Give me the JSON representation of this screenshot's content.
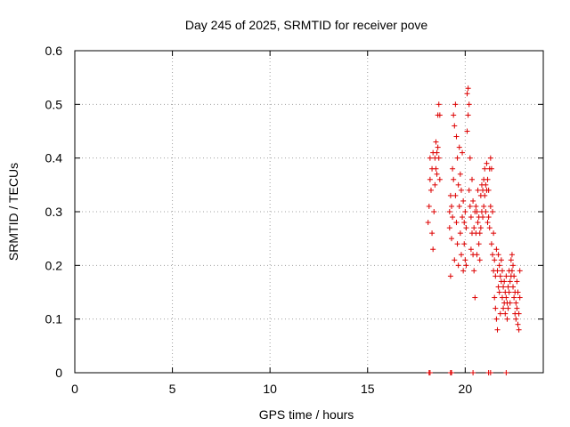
{
  "chart_data": {
    "type": "scatter",
    "title": "Day 245 of 2025, SRMTID for receiver pove",
    "xlabel": "GPS time / hours",
    "ylabel": "SRMTID / TECUs",
    "xlim": [
      0,
      24
    ],
    "ylim": [
      0,
      0.6
    ],
    "xticks": [
      "0",
      "5",
      "10",
      "15",
      "20"
    ],
    "yticks": [
      "0",
      "0.1",
      "0.2",
      "0.3",
      "0.4",
      "0.5",
      "0.6"
    ],
    "grid": true,
    "marker": "+",
    "color": "#dd0000",
    "series": [
      {
        "points": [
          [
            18.15,
            0.0
          ],
          [
            18.2,
            0.0
          ],
          [
            19.25,
            0.0
          ],
          [
            19.3,
            0.0
          ],
          [
            20.4,
            0.0
          ],
          [
            21.2,
            0.0
          ],
          [
            21.3,
            0.0
          ],
          [
            22.1,
            0.0
          ],
          [
            18.1,
            0.28
          ],
          [
            18.15,
            0.31
          ],
          [
            18.2,
            0.36
          ],
          [
            18.2,
            0.4
          ],
          [
            18.25,
            0.34
          ],
          [
            18.3,
            0.26
          ],
          [
            18.3,
            0.38
          ],
          [
            18.35,
            0.41
          ],
          [
            18.35,
            0.23
          ],
          [
            18.4,
            0.3
          ],
          [
            18.45,
            0.4
          ],
          [
            18.45,
            0.35
          ],
          [
            18.5,
            0.43
          ],
          [
            18.5,
            0.38
          ],
          [
            18.55,
            0.41
          ],
          [
            18.55,
            0.37
          ],
          [
            18.6,
            0.42
          ],
          [
            18.6,
            0.48
          ],
          [
            18.65,
            0.5
          ],
          [
            18.65,
            0.4
          ],
          [
            18.7,
            0.48
          ],
          [
            18.7,
            0.36
          ],
          [
            19.2,
            0.3
          ],
          [
            19.2,
            0.27
          ],
          [
            19.25,
            0.33
          ],
          [
            19.25,
            0.18
          ],
          [
            19.3,
            0.31
          ],
          [
            19.3,
            0.25
          ],
          [
            19.35,
            0.38
          ],
          [
            19.35,
            0.29
          ],
          [
            19.4,
            0.48
          ],
          [
            19.4,
            0.36
          ],
          [
            19.45,
            0.46
          ],
          [
            19.45,
            0.21
          ],
          [
            19.5,
            0.5
          ],
          [
            19.5,
            0.33
          ],
          [
            19.55,
            0.44
          ],
          [
            19.55,
            0.28
          ],
          [
            19.6,
            0.4
          ],
          [
            19.6,
            0.24
          ],
          [
            19.65,
            0.35
          ],
          [
            19.65,
            0.2
          ],
          [
            19.7,
            0.42
          ],
          [
            19.7,
            0.31
          ],
          [
            19.75,
            0.37
          ],
          [
            19.75,
            0.26
          ],
          [
            19.8,
            0.34
          ],
          [
            19.8,
            0.22
          ],
          [
            19.85,
            0.41
          ],
          [
            19.85,
            0.29
          ],
          [
            19.9,
            0.32
          ],
          [
            19.9,
            0.19
          ],
          [
            19.95,
            0.28
          ],
          [
            19.95,
            0.24
          ],
          [
            20.0,
            0.3
          ],
          [
            20.0,
            0.21
          ],
          [
            20.05,
            0.27
          ],
          [
            20.05,
            0.2
          ],
          [
            20.1,
            0.45
          ],
          [
            20.1,
            0.52
          ],
          [
            20.15,
            0.53
          ],
          [
            20.15,
            0.48
          ],
          [
            20.2,
            0.5
          ],
          [
            20.2,
            0.34
          ],
          [
            20.25,
            0.4
          ],
          [
            20.25,
            0.31
          ],
          [
            20.3,
            0.29
          ],
          [
            20.3,
            0.23
          ],
          [
            20.35,
            0.36
          ],
          [
            20.35,
            0.26
          ],
          [
            20.4,
            0.32
          ],
          [
            20.4,
            0.22
          ],
          [
            20.45,
            0.27
          ],
          [
            20.45,
            0.19
          ],
          [
            20.5,
            0.3
          ],
          [
            20.5,
            0.14
          ],
          [
            20.55,
            0.31
          ],
          [
            20.55,
            0.26
          ],
          [
            20.6,
            0.3
          ],
          [
            20.6,
            0.22
          ],
          [
            20.65,
            0.34
          ],
          [
            20.65,
            0.28
          ],
          [
            20.7,
            0.29
          ],
          [
            20.7,
            0.24
          ],
          [
            20.75,
            0.26
          ],
          [
            20.75,
            0.21
          ],
          [
            20.8,
            0.33
          ],
          [
            20.8,
            0.27
          ],
          [
            20.85,
            0.35
          ],
          [
            20.85,
            0.3
          ],
          [
            20.9,
            0.34
          ],
          [
            20.9,
            0.29
          ],
          [
            20.95,
            0.36
          ],
          [
            20.95,
            0.31
          ],
          [
            21.0,
            0.38
          ],
          [
            21.0,
            0.33
          ],
          [
            21.05,
            0.35
          ],
          [
            21.05,
            0.3
          ],
          [
            21.1,
            0.39
          ],
          [
            21.1,
            0.34
          ],
          [
            21.15,
            0.36
          ],
          [
            21.15,
            0.28
          ],
          [
            21.2,
            0.34
          ],
          [
            21.2,
            0.29
          ],
          [
            21.25,
            0.38
          ],
          [
            21.25,
            0.27
          ],
          [
            21.3,
            0.4
          ],
          [
            21.3,
            0.31
          ],
          [
            21.35,
            0.38
          ],
          [
            21.35,
            0.24
          ],
          [
            21.4,
            0.3
          ],
          [
            21.4,
            0.22
          ],
          [
            21.45,
            0.26
          ],
          [
            21.45,
            0.19
          ],
          [
            21.5,
            0.21
          ],
          [
            21.5,
            0.14
          ],
          [
            21.55,
            0.18
          ],
          [
            21.55,
            0.12
          ],
          [
            21.6,
            0.23
          ],
          [
            21.6,
            0.1
          ],
          [
            21.65,
            0.19
          ],
          [
            21.65,
            0.08
          ],
          [
            21.7,
            0.22
          ],
          [
            21.7,
            0.16
          ],
          [
            21.75,
            0.2
          ],
          [
            21.75,
            0.15
          ],
          [
            21.8,
            0.18
          ],
          [
            21.8,
            0.11
          ],
          [
            21.85,
            0.21
          ],
          [
            21.85,
            0.17
          ],
          [
            21.9,
            0.19
          ],
          [
            21.9,
            0.14
          ],
          [
            21.95,
            0.16
          ],
          [
            21.95,
            0.12
          ],
          [
            22.0,
            0.17
          ],
          [
            22.0,
            0.13
          ],
          [
            22.05,
            0.15
          ],
          [
            22.05,
            0.11
          ],
          [
            22.1,
            0.18
          ],
          [
            22.1,
            0.14
          ],
          [
            22.15,
            0.13
          ],
          [
            22.15,
            0.1
          ],
          [
            22.2,
            0.16
          ],
          [
            22.2,
            0.12
          ],
          [
            22.25,
            0.19
          ],
          [
            22.25,
            0.15
          ],
          [
            22.3,
            0.17
          ],
          [
            22.3,
            0.13
          ],
          [
            22.35,
            0.21
          ],
          [
            22.35,
            0.18
          ],
          [
            22.4,
            0.22
          ],
          [
            22.4,
            0.19
          ],
          [
            22.45,
            0.2
          ],
          [
            22.45,
            0.16
          ],
          [
            22.5,
            0.18
          ],
          [
            22.5,
            0.14
          ],
          [
            22.55,
            0.15
          ],
          [
            22.55,
            0.11
          ],
          [
            22.6,
            0.13
          ],
          [
            22.6,
            0.1
          ],
          [
            22.65,
            0.17
          ],
          [
            22.65,
            0.12
          ],
          [
            22.7,
            0.15
          ],
          [
            22.7,
            0.09
          ],
          [
            22.75,
            0.11
          ],
          [
            22.75,
            0.08
          ],
          [
            22.8,
            0.19
          ],
          [
            22.8,
            0.14
          ]
        ]
      }
    ]
  }
}
